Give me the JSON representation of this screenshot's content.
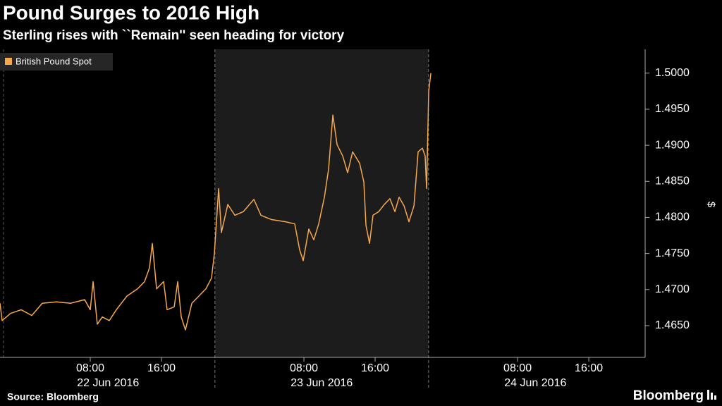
{
  "chart_data": {
    "type": "line",
    "title": "Pound Surges to 2016 High",
    "subtitle": "Sterling rises with ``Remain'' seen heading for victory",
    "y_axis_label": "$",
    "source": "Source: Bloomberg",
    "brand": "Bloomberg",
    "x": [
      -2.14,
      -1.9,
      -0.95,
      0.24,
      1.43,
      2.61,
      4.2,
      5.78,
      7.37,
      8.0,
      8.32,
      8.79,
      9.35,
      10.14,
      10.93,
      12.12,
      13.31,
      14.1,
      14.65,
      14.97,
      15.45,
      16.24,
      16.63,
      17.43,
      17.82,
      18.22,
      18.69,
      19.41,
      20.2,
      20.99,
      21.62,
      21.94,
      22.42,
      22.73,
      23.45,
      24.24,
      25.19,
      26.38,
      27.17,
      28.36,
      29.94,
      30.97,
      31.52,
      31.92,
      32.55,
      33.11,
      33.66,
      34.3,
      34.77,
      35.25,
      35.72,
      36.36,
      36.91,
      37.47,
      38.26,
      38.73,
      38.97,
      39.37,
      39.76,
      40.4,
      41.03,
      41.66,
      42.22,
      42.69,
      43.25,
      43.8,
      44.36,
      44.83,
      45.31,
      45.62,
      45.78,
      46.02,
      46.26
    ],
    "series": [
      {
        "name": "British Pound Spot",
        "color": "#f6a84c",
        "values": [
          1.4681,
          1.4657,
          1.4667,
          1.4672,
          1.4664,
          1.4681,
          1.4683,
          1.4681,
          1.4686,
          1.4672,
          1.4711,
          1.4652,
          1.4662,
          1.4657,
          1.4672,
          1.4691,
          1.4701,
          1.4711,
          1.473,
          1.4764,
          1.4701,
          1.4711,
          1.4672,
          1.4676,
          1.4711,
          1.4662,
          1.4644,
          1.4681,
          1.4691,
          1.4701,
          1.4716,
          1.475,
          1.484,
          1.4779,
          1.4818,
          1.4803,
          1.4808,
          1.4825,
          1.4803,
          1.4797,
          1.4794,
          1.4791,
          1.4755,
          1.474,
          1.4784,
          1.4769,
          1.4791,
          1.4828,
          1.4867,
          1.4942,
          1.4901,
          1.4885,
          1.4862,
          1.4891,
          1.4875,
          1.4849,
          1.4789,
          1.4764,
          1.4803,
          1.4808,
          1.4818,
          1.4826,
          1.4808,
          1.4828,
          1.4816,
          1.4794,
          1.4816,
          1.4891,
          1.4896,
          1.4885,
          1.484,
          1.4975,
          1.5
        ]
      }
    ],
    "xlim": [
      -2.14,
      70.33
    ],
    "ylim": [
      1.4606,
      1.5033
    ],
    "xticks": [
      {
        "value": 8,
        "label": "08:00"
      },
      {
        "value": 16,
        "label": "16:00"
      },
      {
        "value": 32,
        "label": "08:00"
      },
      {
        "value": 40,
        "label": "16:00"
      },
      {
        "value": 56,
        "label": "08:00"
      },
      {
        "value": 64,
        "label": "16:00"
      }
    ],
    "day_labels": [
      {
        "value": 10,
        "label": "22 Jun 2016"
      },
      {
        "value": 34,
        "label": "23 Jun 2016"
      },
      {
        "value": 58,
        "label": "24 Jun 2016"
      }
    ],
    "separators": [
      22,
      46
    ],
    "shaded_range": [
      22,
      46
    ],
    "yticks": [
      {
        "value": 1.465,
        "label": "1.4650"
      },
      {
        "value": 1.47,
        "label": "1.4700"
      },
      {
        "value": 1.475,
        "label": "1.4750"
      },
      {
        "value": 1.48,
        "label": "1.4800"
      },
      {
        "value": 1.485,
        "label": "1.4850"
      },
      {
        "value": 1.49,
        "label": "1.4900"
      },
      {
        "value": 1.495,
        "label": "1.4950"
      },
      {
        "value": 1.5,
        "label": "1.5000"
      }
    ],
    "grid": false
  }
}
